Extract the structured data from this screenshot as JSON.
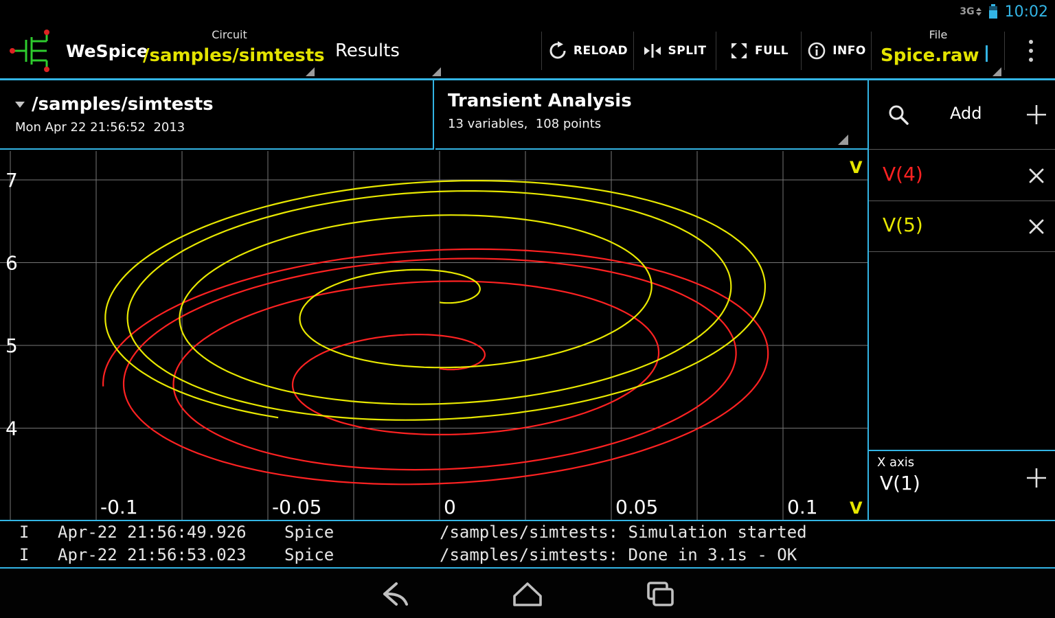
{
  "status_bar": {
    "time": "10:02",
    "network_label": "3G"
  },
  "action_bar": {
    "app_name": "WeSpice",
    "circuit": {
      "label": "Circuit",
      "value": "/samples/simtests"
    },
    "results_tab_label": "Results",
    "actions": [
      {
        "label": "RELOAD",
        "icon": "reload-icon"
      },
      {
        "label": "SPLIT",
        "icon": "split-icon"
      },
      {
        "label": "FULL",
        "icon": "fullscreen-icon"
      },
      {
        "label": "INFO",
        "icon": "info-icon"
      }
    ],
    "file": {
      "label": "File",
      "value": "Spice.raw"
    },
    "overflow_icon": "overflow-menu-icon"
  },
  "panels": {
    "left_header": {
      "title": "/samples/simtests",
      "subtitle": "Mon Apr 22 21:56:52  2013"
    },
    "plot_header": {
      "title": "Transient Analysis",
      "subtitle": "13 variables,  108 points"
    }
  },
  "sidebar": {
    "add_label": "Add",
    "traces": [
      {
        "name": "V(4)",
        "color": "#ff2222"
      },
      {
        "name": "V(5)",
        "color": "#e8e800"
      }
    ],
    "x_axis": {
      "label": "X axis",
      "value": "V(1)"
    }
  },
  "chart_data": {
    "type": "line",
    "title": "Transient Analysis",
    "x_axis_variable": "V(1)",
    "y_unit": "V",
    "x_ticks": [
      "-0.1",
      "-0.05",
      "0",
      "0.05",
      "0.1"
    ],
    "y_ticks": [
      7,
      6,
      5,
      4
    ],
    "xlim": [
      -0.128,
      0.125
    ],
    "ylim": [
      2.9,
      7.35
    ],
    "x_grid_step": 0.025,
    "grid": true,
    "description": "Oscillator start-up phase plot: V(4) and V(5) plotted against V(1); both traces spiral outward from the centre (V(1)=0) to a limit cycle of V(1)-radius ~0.1 V. V(5) cycles between ~4.0 V and ~7.0 V, V(4) between ~3.3 V and ~6.2 V.",
    "series": [
      {
        "name": "V(4)",
        "color": "#ff2222",
        "spiral": {
          "cx": 0,
          "cy": 4.72,
          "rx": 0.098,
          "ry": 1.46,
          "turns": 3.6,
          "growth": 3.2,
          "phase": -0.6,
          "tilt": 0.12
        }
      },
      {
        "name": "V(5)",
        "color": "#e8e800",
        "spiral": {
          "cx": 0,
          "cy": 5.52,
          "rx": 0.098,
          "ry": 1.5,
          "turns": 3.75,
          "growth": 3.2,
          "phase": -0.5,
          "tilt": 0.12
        }
      }
    ]
  },
  "log": {
    "rows": [
      {
        "level": "I",
        "time": "Apr-22 21:56:49.926",
        "source": "Spice",
        "message": "/samples/simtests: Simulation started"
      },
      {
        "level": "I",
        "time": "Apr-22 21:56:53.023",
        "source": "Spice",
        "message": "/samples/simtests: Done in 3.1s - OK"
      }
    ]
  },
  "nav_bar": {
    "buttons": [
      "back",
      "home",
      "recents"
    ]
  },
  "colors": {
    "accent": "#33b5e5",
    "yellow": "#e8e800",
    "red": "#ff2222",
    "grid": "#777777",
    "text": "#ffffff"
  }
}
